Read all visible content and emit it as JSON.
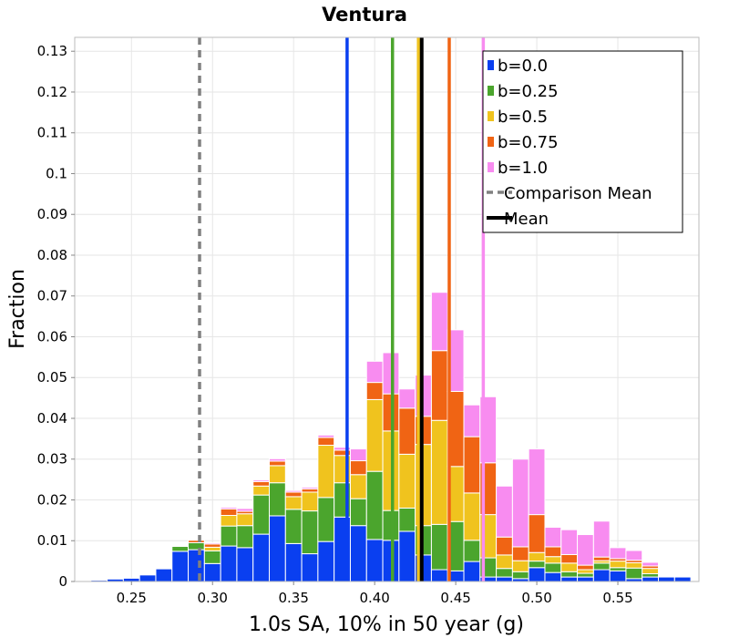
{
  "chart_data": {
    "type": "bar",
    "stacked": true,
    "title": "Ventura",
    "xlabel": "1.0s SA, 10% in 50 year (g)",
    "ylabel": "Fraction",
    "xlim": [
      0.215,
      0.6
    ],
    "ylim": [
      0,
      0.1334
    ],
    "x_ticks": [
      "0.25",
      "0.30",
      "0.35",
      "0.40",
      "0.45",
      "0.50",
      "0.55"
    ],
    "x_tick_values": [
      0.25,
      0.3,
      0.35,
      0.4,
      0.45,
      0.5,
      0.55
    ],
    "y_ticks": [
      "0",
      "0.01",
      "0.02",
      "0.03",
      "0.04",
      "0.05",
      "0.06",
      "0.07",
      "0.08",
      "0.09",
      "0.1",
      "0.11",
      "0.12",
      "0.13"
    ],
    "y_tick_values": [
      0,
      0.01,
      0.02,
      0.03,
      0.04,
      0.05,
      0.06,
      0.07,
      0.08,
      0.09,
      0.1,
      0.11,
      0.12,
      0.13
    ],
    "grid": true,
    "legend_position": "top-right",
    "bin_width": 0.01,
    "bin_starts": [
      0.225,
      0.235,
      0.245,
      0.255,
      0.265,
      0.275,
      0.285,
      0.295,
      0.305,
      0.315,
      0.325,
      0.335,
      0.345,
      0.355,
      0.365,
      0.375,
      0.385,
      0.395,
      0.405,
      0.415,
      0.425,
      0.435,
      0.445,
      0.455,
      0.465,
      0.475,
      0.485,
      0.495,
      0.505,
      0.515,
      0.525,
      0.535,
      0.545,
      0.555,
      0.565,
      0.575,
      0.585
    ],
    "series": [
      {
        "name": "b=0.0",
        "color": "#0a3ff0",
        "values": [
          0.0003,
          0.0006,
          0.0008,
          0.0016,
          0.0031,
          0.0074,
          0.0078,
          0.0044,
          0.0087,
          0.0083,
          0.0116,
          0.0161,
          0.0093,
          0.0068,
          0.0098,
          0.0158,
          0.0137,
          0.0103,
          0.0101,
          0.0123,
          0.0065,
          0.0029,
          0.0026,
          0.0049,
          0.0011,
          0.0011,
          0.0007,
          0.0034,
          0.0022,
          0.0011,
          0.0011,
          0.0029,
          0.0026,
          0.0007,
          0.0011,
          0.0011,
          0.0011
        ]
      },
      {
        "name": "b=0.25",
        "color": "#4ba52d",
        "values": [
          0,
          0,
          0,
          0,
          0,
          0.0012,
          0.0017,
          0.0031,
          0.0049,
          0.0054,
          0.0096,
          0.0081,
          0.0084,
          0.0105,
          0.0108,
          0.0084,
          0.0066,
          0.0167,
          0.0073,
          0.0057,
          0.0072,
          0.0111,
          0.0121,
          0.0052,
          0.0047,
          0.0021,
          0.0017,
          0.0016,
          0.0023,
          0.0013,
          0.0009,
          0.0016,
          0.0008,
          0.0026,
          0.0008,
          0,
          0
        ]
      },
      {
        "name": "b=0.5",
        "color": "#f0c31e",
        "values": [
          0,
          0,
          0,
          0,
          0,
          0,
          0,
          0.0009,
          0.0026,
          0.0029,
          0.0022,
          0.0042,
          0.0031,
          0.0046,
          0.0128,
          0.0067,
          0.0059,
          0.0176,
          0.0195,
          0.0132,
          0.0199,
          0.0255,
          0.0135,
          0.0116,
          0.0106,
          0.0033,
          0.0027,
          0.0021,
          0.0016,
          0.0021,
          0.0009,
          0.0006,
          0.0016,
          0.0013,
          0.0013,
          0,
          0
        ]
      },
      {
        "name": "b=0.75",
        "color": "#f06414",
        "values": [
          0,
          0,
          0,
          0,
          0,
          0,
          0.0006,
          0.0008,
          0.0016,
          0.0006,
          0.0011,
          0.0011,
          0.0011,
          0.0008,
          0.0019,
          0.0013,
          0.0034,
          0.0042,
          0.0091,
          0.0113,
          0.0069,
          0.0171,
          0.0184,
          0.0138,
          0.0127,
          0.0044,
          0.0034,
          0.0093,
          0.0024,
          0.0021,
          0.0011,
          0.0009,
          0.0006,
          0.0006,
          0.0006,
          0,
          0
        ]
      },
      {
        "name": "b=1.0",
        "color": "#f88cf0",
        "values": [
          0,
          0,
          0,
          0,
          0,
          0,
          0,
          0.0003,
          0.0004,
          0.0007,
          0.0004,
          0.0006,
          0.0004,
          0.0004,
          0.0006,
          0.0007,
          0.0029,
          0.0052,
          0.0101,
          0.0047,
          0.0101,
          0.0143,
          0.0151,
          0.0078,
          0.0162,
          0.0125,
          0.0215,
          0.0161,
          0.0048,
          0.0061,
          0.0075,
          0.0088,
          0.0027,
          0.0024,
          0.0009,
          0,
          0
        ]
      }
    ],
    "vertical_lines": [
      {
        "name": "b=0.0",
        "x": 0.383,
        "color": "#0a3ff0",
        "style": "solid"
      },
      {
        "name": "b=0.25",
        "x": 0.411,
        "color": "#4ba52d",
        "style": "solid"
      },
      {
        "name": "b=0.5",
        "x": 0.427,
        "color": "#f0c31e",
        "style": "solid"
      },
      {
        "name": "b=0.75",
        "x": 0.446,
        "color": "#f06414",
        "style": "solid"
      },
      {
        "name": "b=1.0",
        "x": 0.467,
        "color": "#f88cf0",
        "style": "solid"
      },
      {
        "name": "Comparison Mean",
        "x": 0.292,
        "color": "#808080",
        "style": "dashed"
      },
      {
        "name": "Mean",
        "x": 0.429,
        "color": "#000000",
        "style": "solid"
      }
    ],
    "legend": [
      {
        "label": "b=0.0",
        "color": "#0a3ff0",
        "kind": "box"
      },
      {
        "label": "b=0.25",
        "color": "#4ba52d",
        "kind": "box"
      },
      {
        "label": "b=0.5",
        "color": "#f0c31e",
        "kind": "box"
      },
      {
        "label": "b=0.75",
        "color": "#f06414",
        "kind": "box"
      },
      {
        "label": "b=1.0",
        "color": "#f88cf0",
        "kind": "box"
      },
      {
        "label": "Comparison Mean",
        "color": "#808080",
        "kind": "dashed-line"
      },
      {
        "label": "Mean",
        "color": "#000000",
        "kind": "line"
      }
    ]
  }
}
